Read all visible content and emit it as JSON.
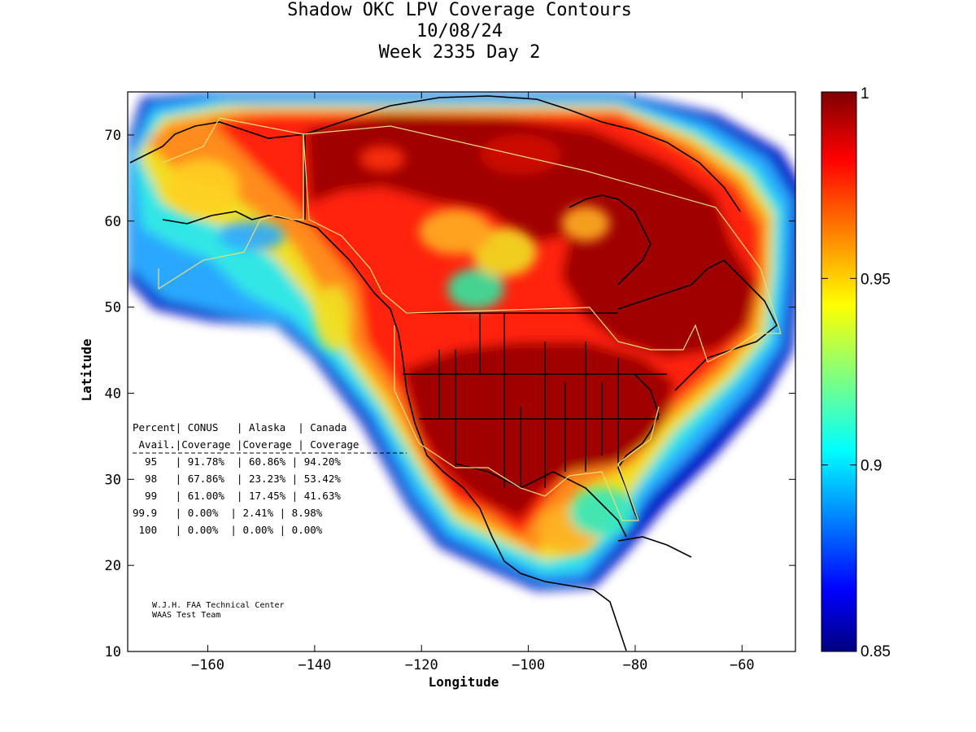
{
  "title": {
    "line1": "Shadow OKC LPV Coverage Contours",
    "line2": "10/08/24",
    "line3": "Week 2335 Day 2"
  },
  "axes": {
    "xlabel": "Longitude",
    "ylabel": "Latitude",
    "xlim": [
      -175,
      -50
    ],
    "ylim": [
      10,
      75
    ],
    "xticks": [
      -160,
      -140,
      -120,
      -100,
      -80,
      -60
    ],
    "yticks": [
      10,
      20,
      30,
      40,
      50,
      60,
      70
    ]
  },
  "colorbar": {
    "min": 0.85,
    "max": 1,
    "ticks": [
      "1",
      "0.95",
      "0.9",
      "0.85"
    ],
    "tick_values": [
      1,
      0.95,
      0.9,
      0.85
    ]
  },
  "stats_table": {
    "header1": "Percent| CONUS   | Alaska  | Canada",
    "header2": " Avail.|Coverage |Coverage | Coverage",
    "rows": [
      "  95   | 91.78%  | 60.86% | 94.20%",
      "  98   | 67.86%  | 23.23% | 53.42%",
      "  99   | 61.00%  | 17.45% | 41.63%",
      "99.9   | 0.00%  | 2.41% | 8.98%",
      " 100   | 0.00%  | 0.00% | 0.00%"
    ]
  },
  "credit": {
    "line1": "W.J.H. FAA Technical Center",
    "line2": "WAAS Test Team"
  },
  "colors": {
    "colormap": "jet",
    "high": "#800000",
    "low": "#000080",
    "border": "#000000",
    "service_volume": "#e8e07a"
  }
}
